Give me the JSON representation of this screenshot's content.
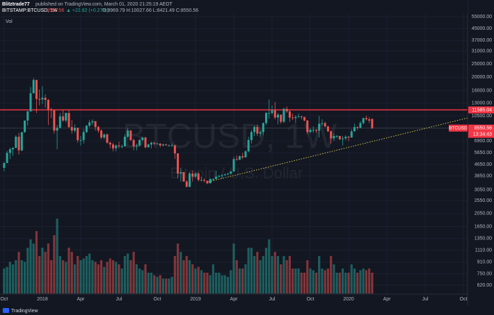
{
  "header": {
    "author": "Blitztrade77",
    "published": "published on TradingView.com, March 01, 2020 21:25:19 AEDT",
    "symbol": "BITSTAMP:BTCUSD, 1W",
    "change": "▲ +22.82 (+0.27%)",
    "ohlc": "O:9969.79 H:10027.66 L:8421.49 C:8550.56"
  },
  "watermark": {
    "title": "BTCUSD, 1W",
    "subtitle": "Bitcoin / U.S. Dollar"
  },
  "footer": {
    "brand": "TradingView"
  },
  "chart_data": {
    "type": "candlestick",
    "log_scale": true,
    "grid": true,
    "ylim": [
      486,
      59000
    ],
    "yticks": [
      {
        "value": 55000,
        "label": "55000.00"
      },
      {
        "value": 45000,
        "label": "45000.00"
      },
      {
        "value": 37000,
        "label": "37000.00"
      },
      {
        "value": 31000,
        "label": "31000.00"
      },
      {
        "value": 25000,
        "label": "25000.00"
      },
      {
        "value": 20000,
        "label": "20000.00"
      },
      {
        "value": 16000,
        "label": "16000.00"
      },
      {
        "value": 13000,
        "label": "13000.00"
      },
      {
        "value": 10500,
        "label": "10500.00"
      },
      {
        "value": 6900,
        "label": "6900.00"
      },
      {
        "value": 5650,
        "label": "5650.00"
      },
      {
        "value": 4650,
        "label": "4650.00"
      },
      {
        "value": 3850,
        "label": "3850.00"
      },
      {
        "value": 3050,
        "label": "3050.00"
      },
      {
        "value": 2550,
        "label": "2550.00"
      },
      {
        "value": 2050,
        "label": "2050.00"
      },
      {
        "value": 1650,
        "label": "1650.00"
      },
      {
        "value": 1350,
        "label": "1350.00"
      },
      {
        "value": 1110,
        "label": "1110.00"
      },
      {
        "value": 910,
        "label": "910.00"
      },
      {
        "value": 750,
        "label": "750.00"
      },
      {
        "value": 620,
        "label": "620.00"
      }
    ],
    "xlim": [
      -1.4,
      157.4
    ],
    "xticks": [
      {
        "value": 0,
        "label": "Oct"
      },
      {
        "value": 13,
        "label": "2018"
      },
      {
        "value": 26,
        "label": "Apr"
      },
      {
        "value": 39,
        "label": "Jul"
      },
      {
        "value": 52,
        "label": "Oct"
      },
      {
        "value": 65,
        "label": "2019"
      },
      {
        "value": 78,
        "label": "Apr"
      },
      {
        "value": 91,
        "label": "Jul"
      },
      {
        "value": 104,
        "label": "Oct"
      },
      {
        "value": 117,
        "label": "2020"
      },
      {
        "value": 130,
        "label": "Apr"
      },
      {
        "value": 143,
        "label": "Jul"
      },
      {
        "value": 156,
        "label": "Oct"
      }
    ],
    "series": [
      {
        "name": "BTCUSD",
        "up_color": "#26a69a",
        "down_color": "#ef5350",
        "open": [
          4400,
          4770,
          5650,
          6000,
          6150,
          7400,
          5900,
          8000,
          9700,
          11300,
          15300,
          19100,
          13900,
          13800,
          14200,
          13700,
          11700,
          11500,
          8200,
          8600,
          10400,
          9700,
          11000,
          8700,
          8200,
          8600,
          7000,
          7000,
          8000,
          8900,
          9400,
          9600,
          8700,
          8200,
          7300,
          7700,
          6700,
          6500,
          6100,
          6400,
          6300,
          6300,
          7400,
          8200,
          7000,
          6300,
          6400,
          7000,
          7300,
          6200,
          6500,
          6700,
          6600,
          6600,
          6400,
          6500,
          6400,
          6400,
          6400,
          5600,
          4000,
          4100,
          3500,
          3200,
          4000,
          3800,
          4000,
          3600,
          3600,
          3550,
          3400,
          3650,
          3650,
          3800,
          3850,
          3900,
          3950,
          4000,
          4150,
          5100,
          5050,
          5350,
          5250,
          5800,
          7000,
          8000,
          8700,
          7800,
          8000,
          9300,
          11000,
          11000,
          11500,
          10200,
          10700,
          9500,
          11800,
          11300,
          10200,
          10100,
          10300,
          10400,
          10300,
          9700,
          8000,
          8300,
          8300,
          8200,
          9200,
          9300,
          8800,
          8100,
          7200,
          7500,
          7500,
          7100,
          7200,
          7400,
          7300,
          8100,
          8700,
          8600,
          9300,
          10100,
          9900,
          9969.79
        ],
        "high": [
          4850,
          5850,
          6150,
          6200,
          7600,
          7900,
          8000,
          9700,
          11400,
          17000,
          19700,
          19200,
          16300,
          17200,
          15000,
          13900,
          12000,
          11600,
          9000,
          11000,
          11700,
          11100,
          11700,
          9800,
          9100,
          8600,
          7500,
          8400,
          9000,
          9800,
          9900,
          9600,
          8900,
          8400,
          7800,
          7800,
          6800,
          6700,
          6500,
          6800,
          6500,
          7700,
          8500,
          8300,
          7200,
          6600,
          7100,
          7400,
          7400,
          6600,
          6800,
          6800,
          6700,
          6650,
          6600,
          6600,
          6500,
          6600,
          6500,
          5600,
          4400,
          4100,
          3600,
          4100,
          4200,
          4100,
          4100,
          3800,
          3700,
          3550,
          3700,
          3700,
          4200,
          3900,
          3950,
          4000,
          4050,
          4150,
          5300,
          5400,
          5400,
          5650,
          5900,
          7400,
          8300,
          8900,
          9100,
          8200,
          9400,
          11200,
          13800,
          12500,
          13200,
          11000,
          10700,
          12000,
          12300,
          11500,
          10900,
          10600,
          10900,
          10500,
          10300,
          9800,
          8500,
          8800,
          8400,
          10500,
          9900,
          9500,
          8850,
          8200,
          7850,
          7600,
          7500,
          7500,
          7600,
          7500,
          8400,
          9200,
          8800,
          9600,
          10200,
          10500,
          10250,
          10027.66
        ],
        "low": [
          4160,
          4770,
          5100,
          5400,
          6100,
          5500,
          5800,
          7900,
          8900,
          11300,
          15300,
          11000,
          12500,
          12800,
          12000,
          9000,
          10100,
          7800,
          6000,
          8500,
          9500,
          9400,
          8600,
          7800,
          7900,
          6700,
          6400,
          6600,
          7900,
          8700,
          9000,
          8200,
          7900,
          7100,
          7100,
          6600,
          6100,
          5800,
          5800,
          6100,
          6100,
          6300,
          7300,
          6900,
          5900,
          5900,
          6300,
          6900,
          6100,
          6200,
          6100,
          6400,
          6500,
          6200,
          6300,
          6400,
          6300,
          6300,
          5100,
          3700,
          3500,
          3500,
          3200,
          3200,
          3500,
          3700,
          3500,
          3500,
          3450,
          3350,
          3400,
          3550,
          3650,
          3750,
          3700,
          3850,
          3900,
          3950,
          4100,
          4950,
          5000,
          5100,
          5200,
          5700,
          6600,
          7500,
          7500,
          7400,
          7600,
          9000,
          10000,
          10700,
          9900,
          9100,
          9200,
          9300,
          11000,
          9500,
          9800,
          9300,
          10200,
          9900,
          9600,
          7700,
          7900,
          7900,
          7900,
          7300,
          8900,
          8700,
          8000,
          6600,
          6900,
          7200,
          7000,
          6400,
          7000,
          6900,
          7300,
          8100,
          8300,
          8500,
          9100,
          9700,
          9300,
          8421.49
        ],
        "close": [
          4770,
          5650,
          6000,
          6150,
          7400,
          5900,
          8000,
          9700,
          11300,
          15300,
          19100,
          13900,
          13800,
          14200,
          13700,
          11700,
          11500,
          8200,
          8600,
          10400,
          9700,
          11000,
          8700,
          8200,
          8600,
          7000,
          7000,
          8000,
          8900,
          9400,
          9600,
          8700,
          8200,
          7300,
          7700,
          6700,
          6500,
          6100,
          6400,
          6300,
          6300,
          7400,
          8200,
          7000,
          6300,
          6400,
          7000,
          7300,
          6200,
          6500,
          6700,
          6600,
          6600,
          6400,
          6500,
          6400,
          6400,
          6400,
          5600,
          4000,
          4100,
          3500,
          3200,
          4000,
          3800,
          4000,
          3600,
          3600,
          3550,
          3400,
          3650,
          3650,
          3800,
          3850,
          3900,
          3950,
          4000,
          4150,
          5100,
          5050,
          5350,
          5250,
          5800,
          7000,
          8000,
          8700,
          7800,
          8000,
          9300,
          11000,
          11000,
          11500,
          10200,
          10700,
          9500,
          11800,
          11300,
          10200,
          10100,
          10300,
          10400,
          10300,
          9700,
          8000,
          8300,
          8300,
          8200,
          9200,
          9300,
          8800,
          8100,
          7200,
          7500,
          7500,
          7100,
          7200,
          7400,
          7300,
          8100,
          8700,
          8600,
          9300,
          10100,
          9900,
          9700,
          8550.56
        ]
      }
    ],
    "volume": {
      "name": "Vol",
      "y2lim": [
        0,
        100
      ],
      "up_color": "rgba(38,166,154,0.5)",
      "down_color": "rgba(239,83,80,0.5)",
      "values": [
        30,
        32,
        38,
        35,
        40,
        50,
        40,
        38,
        55,
        65,
        60,
        75,
        45,
        55,
        50,
        60,
        40,
        70,
        90,
        45,
        40,
        38,
        55,
        50,
        35,
        45,
        40,
        42,
        45,
        48,
        40,
        38,
        35,
        40,
        32,
        38,
        42,
        40,
        38,
        35,
        30,
        45,
        48,
        40,
        50,
        35,
        30,
        28,
        35,
        25,
        25,
        22,
        20,
        22,
        18,
        18,
        18,
        20,
        45,
        60,
        50,
        40,
        45,
        40,
        35,
        30,
        32,
        28,
        25,
        25,
        22,
        35,
        25,
        25,
        22,
        22,
        20,
        28,
        60,
        40,
        30,
        30,
        35,
        55,
        55,
        45,
        50,
        40,
        45,
        55,
        65,
        45,
        50,
        45,
        35,
        45,
        40,
        45,
        30,
        30,
        30,
        25,
        25,
        40,
        30,
        28,
        25,
        45,
        30,
        28,
        30,
        45,
        35,
        25,
        25,
        30,
        25,
        25,
        35,
        30,
        25,
        28,
        30,
        28,
        30,
        25
      ]
    },
    "hlines": [
      {
        "value": 11585.04,
        "color": "#f23645"
      }
    ],
    "trendline": {
      "x": [
        69.5,
        157.4
      ],
      "y": [
        3490,
        10130
      ],
      "color": "#d4c84a"
    },
    "last_price": {
      "value": 8550.56,
      "label": "BTCUSD",
      "countdown": "13:34:43",
      "color": "#f23645"
    }
  }
}
